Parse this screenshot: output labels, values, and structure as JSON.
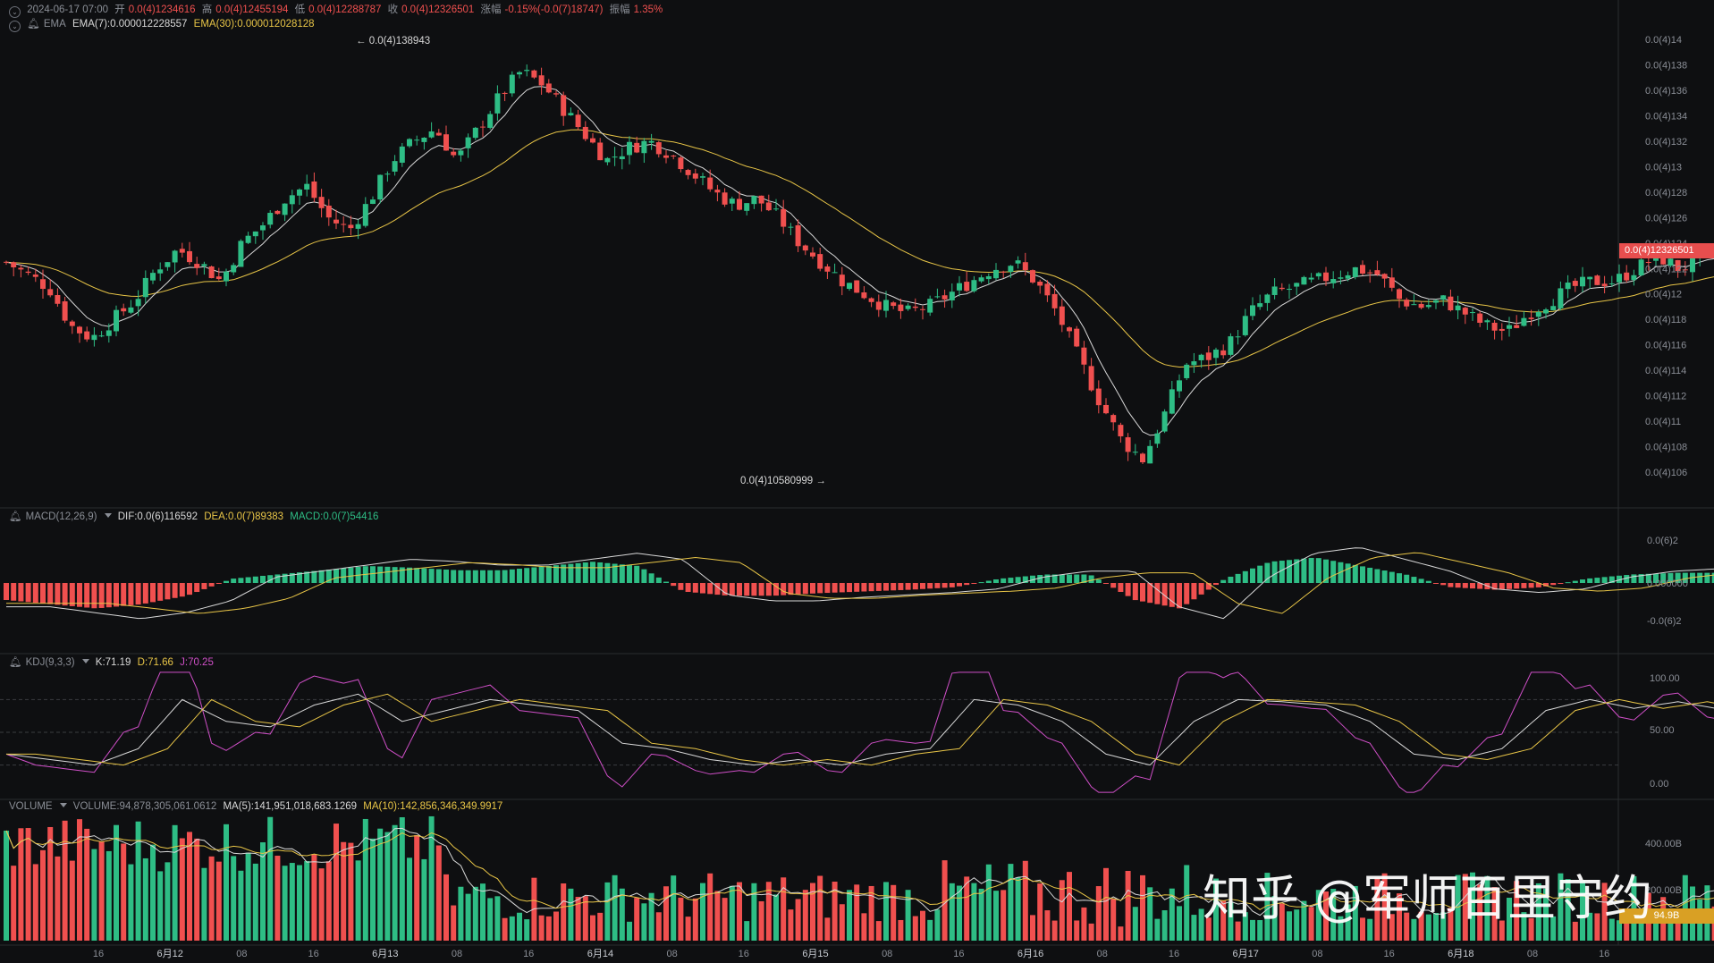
{
  "header": {
    "datetime": "2024-06-17 07:00",
    "open_label": "开",
    "open": "0.0(4)1234616",
    "high_label": "高",
    "high": "0.0(4)12455194",
    "low_label": "低",
    "low": "0.0(4)12288787",
    "close_label": "收",
    "close": "0.0(4)12326501",
    "change_label": "涨幅",
    "change": "-0.15%(-0.0(7)18747)",
    "amp_label": "振幅",
    "amp": "1.35%"
  },
  "ema": {
    "label": "EMA",
    "ema7": "EMA(7):0.000012228557",
    "ema30": "EMA(30):0.000012028128"
  },
  "macd": {
    "label": "MACD(12,26,9)",
    "dif": "DIF:0.0(6)116592",
    "dea": "DEA:0.0(7)89383",
    "macd": "MACD:0.0(7)54416"
  },
  "kdj": {
    "label": "KDJ(9,3,3)",
    "k": "K:71.19",
    "d": "D:71.66",
    "j": "J:70.25"
  },
  "volume": {
    "label": "VOLUME",
    "vol": "VOLUME:94,878,305,061.0612",
    "ma5": "MA(5):141,951,018,683.1269",
    "ma10": "MA(10):142,856,346,349.9917",
    "current_tag": "94.9B"
  },
  "annotations": {
    "high_marker": "← 0.0(4)138943",
    "low_marker": "0.0(4)10580999 →"
  },
  "price_tag": "0.0(4)12326501",
  "watermark": "知乎 @军师百里守约",
  "colors": {
    "up": "#2ebd85",
    "down": "#f0504f",
    "ema7": "#d8d8d8",
    "ema30": "#e8c547",
    "kdj_j": "#d04fc8",
    "bg": "#0e0f11"
  },
  "chart_data": {
    "type": "candlestick",
    "price_axis_ticks": [
      "0.0(4)14",
      "0.0(4)138",
      "0.0(4)136",
      "0.0(4)134",
      "0.0(4)132",
      "0.0(4)13",
      "0.0(4)128",
      "0.0(4)126",
      "0.0(4)124",
      "0.0(4)122",
      "0.0(4)12",
      "0.0(4)118",
      "0.0(4)116",
      "0.0(4)114",
      "0.0(4)112",
      "0.0(4)11",
      "0.0(4)108",
      "0.0(4)106"
    ],
    "price_axis_values": [
      14.0,
      13.8,
      13.6,
      13.4,
      13.2,
      13.0,
      12.8,
      12.6,
      12.4,
      12.2,
      12.0,
      11.8,
      11.6,
      11.4,
      11.2,
      11.0,
      10.8,
      10.6
    ],
    "macd_axis_ticks": [
      "0.0(6)2",
      "0.000000",
      "-0.0(6)2"
    ],
    "kdj_axis_ticks": [
      "100.00",
      "50.00",
      "0.00"
    ],
    "volume_axis_ticks": [
      "400.00B",
      "200.00B"
    ],
    "time_axis_ticks": [
      "16",
      "6月12",
      "08",
      "16",
      "6月13",
      "08",
      "16",
      "6月14",
      "08",
      "16",
      "6月15",
      "08",
      "16",
      "6月16",
      "08",
      "16",
      "6月17",
      "08",
      "16",
      "6月18",
      "08",
      "16"
    ],
    "close_path": [
      12.25,
      12.15,
      12.05,
      11.75,
      11.65,
      11.8,
      11.95,
      12.2,
      12.35,
      12.25,
      12.1,
      12.4,
      12.55,
      12.75,
      12.85,
      12.6,
      12.5,
      12.75,
      13.05,
      13.2,
      13.3,
      13.05,
      13.3,
      13.55,
      13.75,
      13.65,
      13.45,
      13.25,
      13.05,
      13.15,
      13.2,
      13.1,
      12.95,
      12.8,
      12.7,
      12.75,
      12.6,
      12.4,
      12.25,
      12.1,
      12.0,
      11.9,
      11.85,
      11.9,
      12.0,
      12.1,
      12.2,
      12.25,
      12.1,
      11.85,
      11.5,
      11.15,
      10.85,
      10.7,
      11.05,
      11.45,
      11.5,
      11.6,
      11.85,
      12.0,
      12.05,
      12.1,
      12.15,
      12.2,
      12.15,
      11.95,
      11.9,
      11.95,
      11.85,
      11.75,
      11.7,
      11.85,
      11.95,
      12.05,
      12.1,
      12.1,
      12.2,
      12.3,
      12.2,
      12.25,
      12.33
    ],
    "macd_path": [
      -0.2,
      -0.25,
      -0.3,
      -0.25,
      -0.15,
      0.05,
      0.1,
      0.15,
      0.2,
      0.18,
      0.15,
      0.15,
      0.2,
      0.25,
      0.2,
      -0.1,
      -0.15,
      -0.15,
      -0.12,
      -0.1,
      -0.08,
      -0.05,
      0.05,
      0.1,
      0.1,
      -0.2,
      -0.3,
      0.05,
      0.25,
      0.3,
      0.2,
      0.1,
      -0.05,
      -0.08,
      -0.05,
      0.05,
      0.1,
      0.12,
      0.12
    ],
    "kdj_k_path": [
      30,
      25,
      20,
      35,
      80,
      60,
      55,
      75,
      85,
      60,
      70,
      80,
      75,
      70,
      40,
      35,
      25,
      20,
      25,
      20,
      30,
      35,
      80,
      75,
      60,
      30,
      20,
      60,
      80,
      78,
      75,
      60,
      30,
      25,
      35,
      70,
      80,
      72,
      78,
      71
    ]
  }
}
